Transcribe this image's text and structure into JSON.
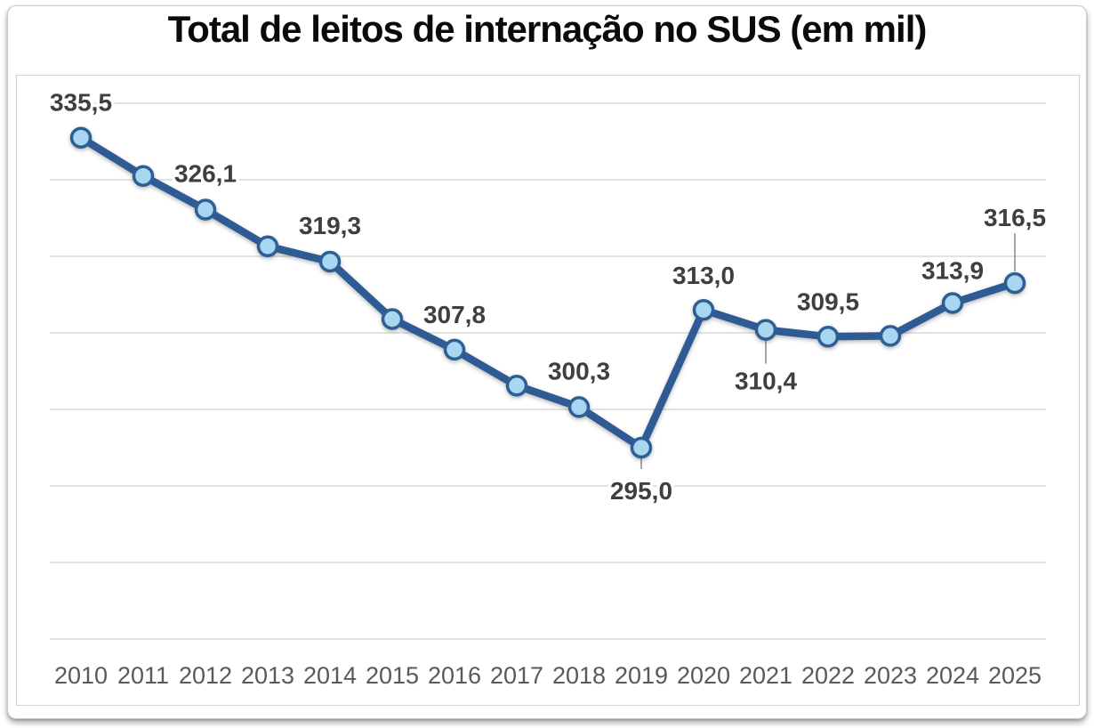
{
  "page": {
    "background": "#ffffff"
  },
  "chart_data": {
    "type": "line",
    "title": "Total de leitos de internação no SUS (em mil)",
    "categories": [
      "2010",
      "2011",
      "2012",
      "2013",
      "2014",
      "2015",
      "2016",
      "2017",
      "2018",
      "2019",
      "2020",
      "2021",
      "2022",
      "2023",
      "2024",
      "2025"
    ],
    "series": [
      {
        "name": "Total de leitos de internação no SUS (em mil)",
        "values": [
          335.5,
          330.5,
          326.1,
          321.3,
          319.3,
          311.8,
          307.8,
          303.1,
          300.3,
          295.0,
          313.0,
          310.4,
          309.5,
          309.6,
          313.9,
          316.5
        ]
      }
    ],
    "labeled_points": [
      {
        "category": "2010",
        "text": "335,5",
        "placement": "above",
        "dy": -40,
        "leader": null
      },
      {
        "category": "2012",
        "text": "326,1",
        "placement": "above",
        "dy": -41,
        "leader": null
      },
      {
        "category": "2014",
        "text": "319,3",
        "placement": "above",
        "dy": -41,
        "leader": null
      },
      {
        "category": "2016",
        "text": "307,8",
        "placement": "above",
        "dy": -40,
        "leader": null
      },
      {
        "category": "2018",
        "text": "300,3",
        "placement": "above",
        "dy": -41,
        "leader": null
      },
      {
        "category": "2019",
        "text": "295,0",
        "placement": "below",
        "dy": 48,
        "leader": [
          9,
          24
        ]
      },
      {
        "category": "2020",
        "text": "313,0",
        "placement": "above",
        "dy": -39,
        "leader": null
      },
      {
        "category": "2021",
        "text": "310,4",
        "placement": "below",
        "dy": 57,
        "leader": [
          10,
          38
        ]
      },
      {
        "category": "2022",
        "text": "309,5",
        "placement": "above",
        "dy": -40,
        "leader": null
      },
      {
        "category": "2024",
        "text": "313,9",
        "placement": "above",
        "dy": -37,
        "leader": null
      },
      {
        "category": "2025",
        "text": "316,5",
        "placement": "above",
        "dy": -74,
        "leader": [
          -56,
          -13
        ]
      }
    ],
    "unlabeled_estimated_categories": [
      "2011",
      "2013",
      "2015",
      "2017",
      "2023"
    ],
    "ylim": [
      270,
      340
    ],
    "gridline_step": 10,
    "grid": "horizontal",
    "y_axis_labels_visible": false,
    "legend": "none",
    "decimal_separator": ",",
    "colors": {
      "line": "#2F5B94",
      "marker_fill": "#A9D7F2",
      "marker_border": "#2D5F94",
      "gridline": "#D9D9D9",
      "plot_border": "#D2D2D2",
      "axis_label": "#595959",
      "data_label": "#3F3F3F",
      "leader_line": "#A6A6A6",
      "title": "#0A0A0A"
    }
  }
}
